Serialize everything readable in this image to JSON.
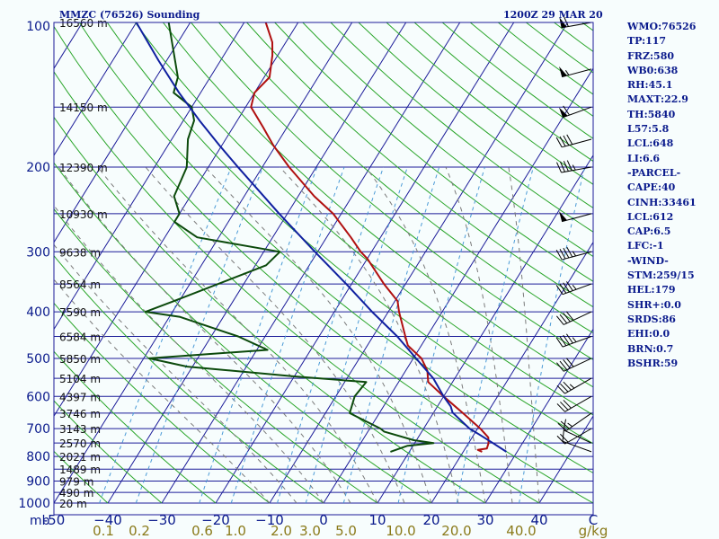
{
  "header": {
    "station_title": "MMZC (76526) Sounding",
    "valid_time": "1200Z 29 MAR 20"
  },
  "stats": [
    "WMO:76526",
    "TP:117",
    "FRZ:580",
    "WB0:638",
    "RH:45.1",
    "MAXT:22.9",
    "TH:5840",
    "L57:5.8",
    "LCL:648",
    "LI:6.6",
    "-PARCEL-",
    "CAPE:40",
    "CINH:33461",
    "LCL:612",
    "CAP:6.5",
    "LFC:-1",
    "-WIND-",
    "STM:259/15",
    "HEL:179",
    "SHR+:0.0",
    "SRDS:86",
    "EHI:0.0",
    "BRN:0.7",
    "BSHR:59"
  ],
  "colors": {
    "background": "#f7fdfd",
    "isobar": "#1c1c99",
    "isotherm": "#1c1c99",
    "dry_adiabat": "#2aa52a",
    "moist_adiabat": "#7a7a7a",
    "mixing_ratio": "#4a9ad6",
    "temperature": "#b01010",
    "dewpoint": "#0c4a0c",
    "parcel": "#1020a0",
    "mixing_label": "#8a7a1a",
    "text": "#0a1a8c",
    "wind": "#000000"
  },
  "chart_data": {
    "type": "line",
    "title": "MMZC (76526) Sounding",
    "subtitle": "1200Z 29 MAR 20",
    "diagram": "skew-T log-p",
    "xlabel_units": "C",
    "mixing_ratio_units": "g/kg",
    "pressure_axis_units": "mb",
    "xlim": [
      -50,
      50
    ],
    "ylim": [
      1000,
      100
    ],
    "x_ticks": [
      -50,
      -40,
      -30,
      -20,
      -10,
      0,
      10,
      20,
      30,
      40
    ],
    "x_tick_labels": [
      "-50",
      "−40",
      "−30",
      "−20",
      "−10",
      "0",
      "10",
      "20",
      "30",
      "40"
    ],
    "pressure_ticks": [
      100,
      200,
      300,
      400,
      500,
      600,
      700,
      800,
      900,
      1000
    ],
    "height_labels": [
      {
        "p": 100,
        "label": "16560 m"
      },
      {
        "p": 150,
        "label": "14150 m"
      },
      {
        "p": 200,
        "label": "12390 m"
      },
      {
        "p": 250,
        "label": "10930 m"
      },
      {
        "p": 300,
        "label": "9638 m"
      },
      {
        "p": 350,
        "label": "8564 m"
      },
      {
        "p": 400,
        "label": "7590 m"
      },
      {
        "p": 450,
        "label": "6584 m"
      },
      {
        "p": 500,
        "label": "5850 m"
      },
      {
        "p": 550,
        "label": "5104 m"
      },
      {
        "p": 600,
        "label": "4397 m"
      },
      {
        "p": 650,
        "label": "3746 m"
      },
      {
        "p": 700,
        "label": "3143 m"
      },
      {
        "p": 750,
        "label": "2570 m"
      },
      {
        "p": 800,
        "label": "2021 m"
      },
      {
        "p": 850,
        "label": "1489 m"
      },
      {
        "p": 900,
        "label": "979 m"
      },
      {
        "p": 950,
        "label": "490 m"
      },
      {
        "p": 1000,
        "label": "20 m"
      }
    ],
    "mixing_ratio_labels": [
      "0.1",
      "0.2",
      "0.6",
      "1.0",
      "2.0",
      "3.0",
      "5.0",
      "10.0",
      "20.0",
      "40.0"
    ],
    "mixing_ratio_values": [
      0.1,
      0.2,
      0.6,
      1.0,
      2.0,
      3.0,
      5.0,
      10.0,
      20.0,
      40.0
    ],
    "series": [
      {
        "name": "temperature",
        "points": [
          [
            782,
            23.5
          ],
          [
            775,
            22.5
          ],
          [
            770,
            24
          ],
          [
            750,
            23.7
          ],
          [
            730,
            23
          ],
          [
            700,
            20.5
          ],
          [
            650,
            15.5
          ],
          [
            600,
            10
          ],
          [
            560,
            5.5
          ],
          [
            550,
            5
          ],
          [
            530,
            4
          ],
          [
            500,
            1.5
          ],
          [
            470,
            -2.5
          ],
          [
            450,
            -4
          ],
          [
            400,
            -8
          ],
          [
            380,
            -9.5
          ],
          [
            350,
            -14
          ],
          [
            310,
            -20
          ],
          [
            300,
            -22
          ],
          [
            280,
            -25.5
          ],
          [
            250,
            -31.5
          ],
          [
            230,
            -37
          ],
          [
            200,
            -45
          ],
          [
            180,
            -50.5
          ],
          [
            165,
            -54.5
          ],
          [
            150,
            -59
          ],
          [
            140,
            -60
          ],
          [
            130,
            -59
          ],
          [
            117,
            -61
          ],
          [
            110,
            -62.5
          ],
          [
            100,
            -66
          ]
        ]
      },
      {
        "name": "dewpoint",
        "points": [
          [
            782,
            6.5
          ],
          [
            760,
            9
          ],
          [
            750,
            13.5
          ],
          [
            740,
            9.5
          ],
          [
            710,
            3
          ],
          [
            700,
            2
          ],
          [
            650,
            -5.5
          ],
          [
            600,
            -6.5
          ],
          [
            560,
            -6
          ],
          [
            545,
            -20
          ],
          [
            520,
            -41
          ],
          [
            500,
            -49
          ],
          [
            480,
            -28
          ],
          [
            450,
            -35
          ],
          [
            410,
            -48
          ],
          [
            400,
            -55
          ],
          [
            380,
            -51
          ],
          [
            320,
            -38
          ],
          [
            300,
            -37
          ],
          [
            280,
            -54
          ],
          [
            260,
            -60
          ],
          [
            250,
            -60
          ],
          [
            230,
            -63
          ],
          [
            200,
            -64
          ],
          [
            175,
            -67
          ],
          [
            160,
            -68
          ],
          [
            150,
            -70
          ],
          [
            140,
            -75
          ],
          [
            130,
            -76
          ],
          [
            100,
            -84
          ]
        ]
      },
      {
        "name": "parcel",
        "points": [
          [
            782,
            28
          ],
          [
            750,
            24.5
          ],
          [
            720,
            21
          ],
          [
            700,
            18.5
          ],
          [
            648,
            13.5
          ],
          [
            630,
            12.5
          ],
          [
            600,
            10
          ],
          [
            550,
            6
          ],
          [
            500,
            0.5
          ],
          [
            450,
            -5.5
          ],
          [
            400,
            -13
          ],
          [
            350,
            -21
          ],
          [
            300,
            -30.5
          ],
          [
            250,
            -41.5
          ],
          [
            200,
            -54.5
          ],
          [
            180,
            -60.5
          ],
          [
            160,
            -67
          ],
          [
            140,
            -74
          ],
          [
            120,
            -81.5
          ],
          [
            100,
            -90
          ]
        ]
      }
    ],
    "wind_barbs": [
      {
        "p": 782,
        "dir": 290,
        "kt": 10
      },
      {
        "p": 750,
        "dir": 295,
        "kt": 10
      },
      {
        "p": 700,
        "dir": 240,
        "kt": 20
      },
      {
        "p": 650,
        "dir": 235,
        "kt": 25
      },
      {
        "p": 600,
        "dir": 240,
        "kt": 30
      },
      {
        "p": 550,
        "dir": 240,
        "kt": 35
      },
      {
        "p": 500,
        "dir": 245,
        "kt": 40
      },
      {
        "p": 450,
        "dir": 250,
        "kt": 45
      },
      {
        "p": 400,
        "dir": 245,
        "kt": 40
      },
      {
        "p": 350,
        "dir": 250,
        "kt": 45
      },
      {
        "p": 300,
        "dir": 255,
        "kt": 45
      },
      {
        "p": 250,
        "dir": 255,
        "kt": 50
      },
      {
        "p": 200,
        "dir": 260,
        "kt": 45
      },
      {
        "p": 175,
        "dir": 255,
        "kt": 40
      },
      {
        "p": 150,
        "dir": 250,
        "kt": 60
      },
      {
        "p": 125,
        "dir": 255,
        "kt": 55
      },
      {
        "p": 100,
        "dir": 260,
        "kt": 60
      }
    ]
  }
}
